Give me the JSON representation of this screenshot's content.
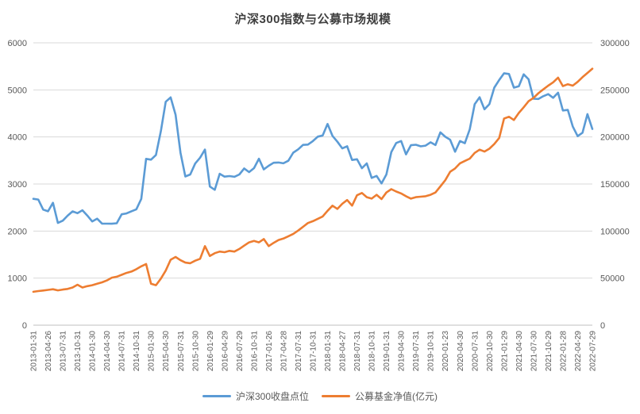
{
  "title": "沪深300指数与公募市场规模",
  "colors": {
    "series_blue": "#5B9BD5",
    "series_orange": "#ED7D31",
    "gridline": "#D9D9D9",
    "axis_line": "#BFBFBF",
    "axis_text": "#595959",
    "title_text": "#404040",
    "background": "#FFFFFF"
  },
  "legend": {
    "position": "bottom",
    "items": [
      {
        "label": "沪深300收盘点位",
        "color": "#5B9BD5"
      },
      {
        "label": "公募基金净值(亿元)",
        "color": "#ED7D31"
      }
    ]
  },
  "chart_data": {
    "type": "line",
    "title": "沪深300指数与公募市场规模",
    "grid": true,
    "legend_position": "bottom",
    "left_axis": {
      "min": 0,
      "max": 6000,
      "step": 1000,
      "tick_labels": [
        "0",
        "1000",
        "2000",
        "3000",
        "4000",
        "5000",
        "6000"
      ]
    },
    "right_axis": {
      "min": 0,
      "max": 300000,
      "step": 50000,
      "tick_labels": [
        "0",
        "50000",
        "100000",
        "150000",
        "200000",
        "250000",
        "300000"
      ]
    },
    "x_is_monthly": true,
    "x_label_every_n_points": 3,
    "x_tick_labels": [
      "2013-01-31",
      "2013-04-26",
      "2013-07-31",
      "2013-10-31",
      "2014-01-30",
      "2014-04-30",
      "2014-07-31",
      "2014-10-31",
      "2015-01-30",
      "2015-04-30",
      "2015-07-31",
      "2015-10-30",
      "2016-01-29",
      "2016-04-29",
      "2016-07-29",
      "2016-10-31",
      "2017-01-26",
      "2017-04-28",
      "2017-07-31",
      "2017-10-31",
      "2018-01-31",
      "2018-04-27",
      "2018-07-31",
      "2018-10-31",
      "2019-01-31",
      "2019-04-30",
      "2019-07-31",
      "2019-10-31",
      "2020-01-23",
      "2020-04-30",
      "2020-07-31",
      "2020-10-30",
      "2021-01-29",
      "2021-04-30",
      "2021-07-30",
      "2021-10-29",
      "2022-01-28",
      "2022-04-29",
      "2022-07-29"
    ],
    "series": [
      {
        "name": "沪深300收盘点位",
        "axis": "left",
        "color": "#5B9BD5",
        "values": [
          2685,
          2669,
          2455,
          2420,
          2601,
          2173,
          2222,
          2328,
          2418,
          2379,
          2442,
          2331,
          2204,
          2264,
          2159,
          2157,
          2155,
          2165,
          2356,
          2374,
          2420,
          2463,
          2683,
          3534,
          3517,
          3617,
          4124,
          4748,
          4840,
          4473,
          3664,
          3160,
          3203,
          3434,
          3560,
          3731,
          2946,
          2877,
          3218,
          3156,
          3168,
          3154,
          3203,
          3330,
          3253,
          3337,
          3538,
          3310,
          3388,
          3452,
          3456,
          3440,
          3493,
          3666,
          3737,
          3831,
          3837,
          3911,
          4006,
          4031,
          4276,
          4023,
          3899,
          3756,
          3802,
          3511,
          3525,
          3335,
          3439,
          3129,
          3172,
          3011,
          3202,
          3678,
          3872,
          3913,
          3630,
          3825,
          3835,
          3800,
          3815,
          3887,
          3828,
          4097,
          4004,
          3940,
          3686,
          3913,
          3867,
          4163,
          4696,
          4844,
          4587,
          4695,
          5047,
          5211,
          5352,
          5337,
          5048,
          5078,
          5331,
          5224,
          4811,
          4806,
          4866,
          4909,
          4832,
          4940,
          4563,
          4574,
          4223,
          4016,
          4091,
          4485,
          4170
        ]
      },
      {
        "name": "公募基金净值(亿元)",
        "axis": "right",
        "color": "#ED7D31",
        "values": [
          35500,
          36200,
          36800,
          37500,
          38200,
          37000,
          37800,
          38500,
          40000,
          43000,
          40000,
          41500,
          42500,
          44000,
          45500,
          47500,
          50500,
          51500,
          53500,
          55500,
          57000,
          59500,
          62500,
          65000,
          44000,
          42500,
          49500,
          58000,
          69500,
          72500,
          69000,
          66500,
          65800,
          68500,
          70500,
          84000,
          73500,
          76500,
          78200,
          77500,
          79000,
          78200,
          81000,
          84500,
          88000,
          89500,
          88000,
          91500,
          84000,
          87500,
          90500,
          92000,
          94500,
          97000,
          100500,
          104500,
          108500,
          110500,
          113000,
          115500,
          121500,
          127000,
          123500,
          129000,
          133000,
          127000,
          138000,
          140500,
          136000,
          134500,
          138500,
          134000,
          141000,
          144500,
          142000,
          140000,
          137000,
          134500,
          136000,
          136500,
          137000,
          138500,
          141000,
          147500,
          154000,
          163000,
          166500,
          172000,
          174500,
          177000,
          183000,
          186500,
          184500,
          187500,
          192500,
          199000,
          219500,
          221500,
          218000,
          225500,
          231500,
          238000,
          241500,
          246500,
          250500,
          254500,
          258000,
          263000,
          254000,
          256000,
          254500,
          258500,
          263500,
          268000,
          272500
        ]
      }
    ]
  }
}
